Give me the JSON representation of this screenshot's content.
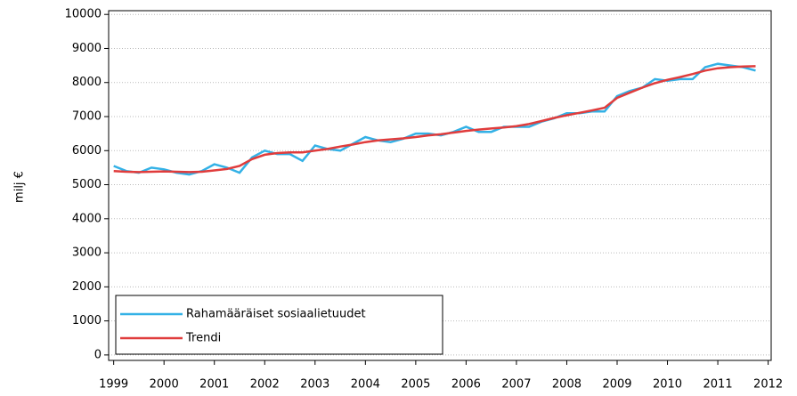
{
  "chart_data": {
    "type": "line",
    "y_label": "milj €",
    "x": [
      1999,
      1999.25,
      1999.5,
      1999.75,
      2000,
      2000.25,
      2000.5,
      2000.75,
      2001,
      2001.25,
      2001.5,
      2001.75,
      2002,
      2002.25,
      2002.5,
      2002.75,
      2003,
      2003.25,
      2003.5,
      2003.75,
      2004,
      2004.25,
      2004.5,
      2004.75,
      2005,
      2005.25,
      2005.5,
      2005.75,
      2006,
      2006.25,
      2006.5,
      2006.75,
      2007,
      2007.25,
      2007.5,
      2007.75,
      2008,
      2008.25,
      2008.5,
      2008.75,
      2009,
      2009.25,
      2009.5,
      2009.75,
      2010,
      2010.25,
      2010.5,
      2010.75,
      2011,
      2011.25,
      2011.5,
      2011.75
    ],
    "series": [
      {
        "name": "Rahamääräiset sosiaalietuudet",
        "color": "#33b1e6",
        "values": [
          5550,
          5400,
          5350,
          5500,
          5450,
          5350,
          5300,
          5400,
          5600,
          5500,
          5350,
          5800,
          6000,
          5900,
          5900,
          5700,
          6150,
          6050,
          6000,
          6200,
          6400,
          6300,
          6250,
          6350,
          6500,
          6500,
          6450,
          6550,
          6700,
          6550,
          6550,
          6700,
          6700,
          6700,
          6850,
          6950,
          7100,
          7100,
          7150,
          7150,
          7600,
          7750,
          7850,
          8100,
          8050,
          8100,
          8100,
          8450,
          8550,
          8500,
          8450,
          8350
        ]
      },
      {
        "name": "Trendi",
        "color": "#e03c3c",
        "values": [
          5400,
          5380,
          5370,
          5380,
          5390,
          5380,
          5370,
          5380,
          5420,
          5460,
          5550,
          5750,
          5880,
          5930,
          5950,
          5950,
          6000,
          6050,
          6120,
          6180,
          6250,
          6300,
          6330,
          6360,
          6400,
          6450,
          6480,
          6530,
          6580,
          6620,
          6650,
          6680,
          6720,
          6780,
          6870,
          6960,
          7040,
          7110,
          7180,
          7260,
          7550,
          7700,
          7850,
          7980,
          8080,
          8160,
          8250,
          8350,
          8420,
          8450,
          8470,
          8480
        ]
      }
    ],
    "xlim": [
      1998.9,
      2012.06
    ],
    "xticks": [
      1999,
      2000,
      2001,
      2002,
      2003,
      2004,
      2005,
      2006,
      2007,
      2008,
      2009,
      2010,
      2011,
      2012
    ],
    "ylim": [
      -160,
      10110
    ],
    "yticks": [
      0,
      1000,
      2000,
      3000,
      4000,
      5000,
      6000,
      7000,
      8000,
      9000,
      10000
    ],
    "grid": true,
    "legend": "lower left"
  }
}
